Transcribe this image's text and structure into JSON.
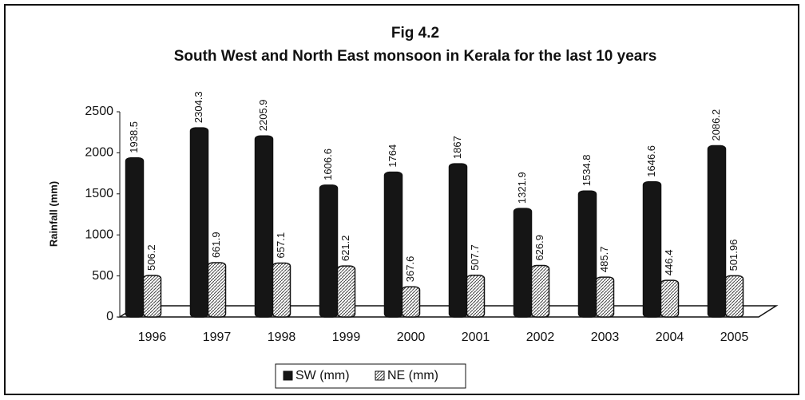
{
  "chart_data": {
    "type": "bar",
    "title": "Fig 4.2",
    "subtitle": "South West and North East monsoon in Kerala for the last 10 years",
    "y_label": "Rainfall (mm)",
    "categories": [
      "1996",
      "1997",
      "1998",
      "1999",
      "2000",
      "2001",
      "2002",
      "2003",
      "2004",
      "2005"
    ],
    "series": [
      {
        "name": "SW (mm)",
        "color": "#151515",
        "values": [
          1938.5,
          2304.3,
          2205.9,
          1606.6,
          1764,
          1867,
          1321.9,
          1534.8,
          1646.6,
          2086.2
        ]
      },
      {
        "name": "NE (mm)",
        "color": "#ffffff",
        "values": [
          506.2,
          661.9,
          657.1,
          621.2,
          367.6,
          507.7,
          626.9,
          485.7,
          446.4,
          501.96
        ]
      }
    ],
    "ylim": [
      0,
      2500
    ],
    "yticks": [
      0,
      500,
      1000,
      1500,
      2000,
      2500
    ],
    "legend": "bottom"
  }
}
